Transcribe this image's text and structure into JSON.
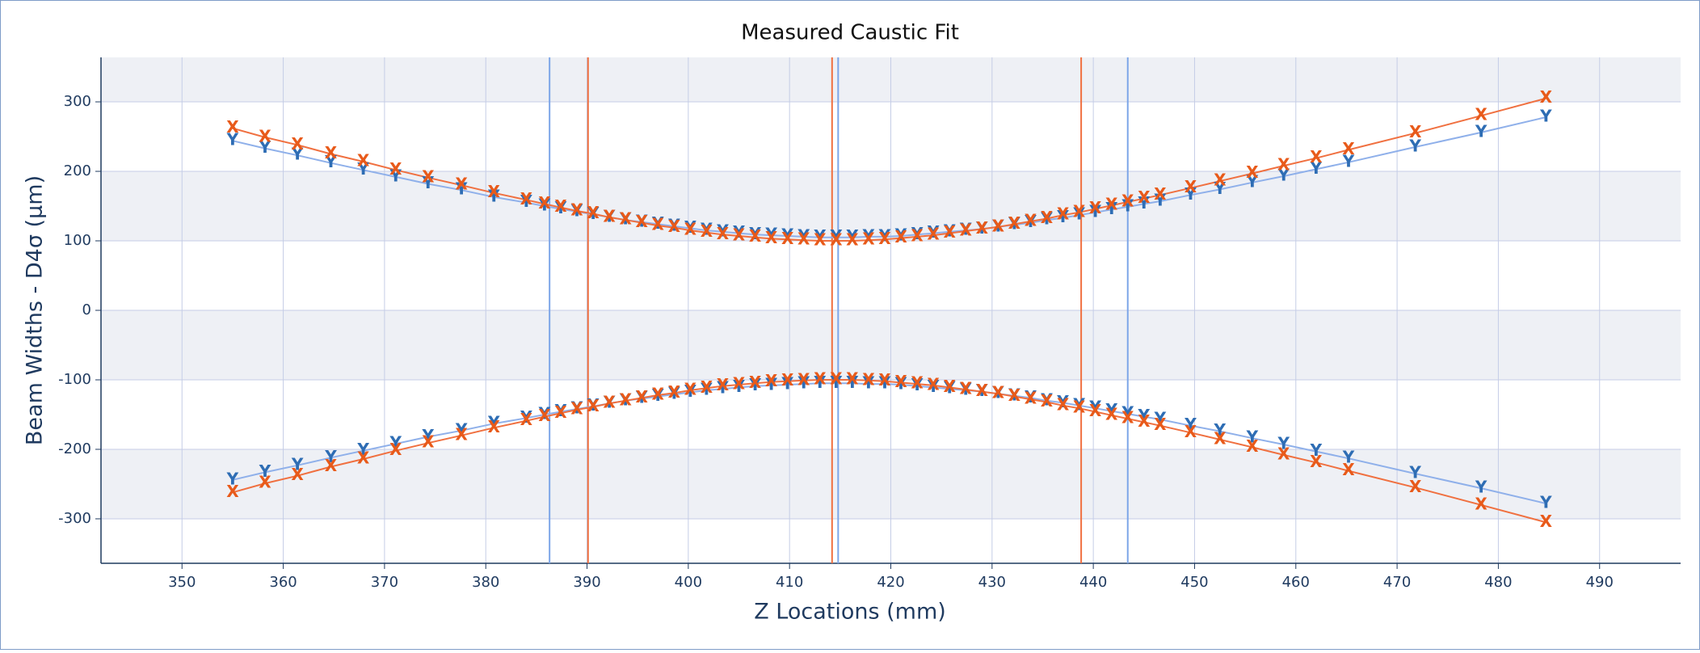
{
  "chart_data": {
    "type": "scatter",
    "title": "Measured Caustic Fit",
    "x_label": "Z Locations (mm)",
    "y_label": "Beam Widths - D4σ (µm)",
    "xlim": [
      342,
      498
    ],
    "ylim": [
      -364,
      364
    ],
    "xticks": [
      350,
      360,
      370,
      380,
      390,
      400,
      410,
      420,
      430,
      440,
      450,
      460,
      470,
      480,
      490
    ],
    "yticks": [
      -300,
      -200,
      -100,
      0,
      100,
      200,
      300
    ],
    "grid": true,
    "banded": true,
    "x": [
      355.0,
      358.2,
      361.4,
      364.7,
      367.9,
      371.1,
      374.3,
      377.6,
      380.8,
      384.0,
      385.8,
      387.4,
      389.0,
      390.6,
      392.2,
      393.8,
      395.4,
      397.0,
      398.6,
      400.2,
      401.8,
      403.4,
      405.0,
      406.6,
      408.2,
      409.8,
      411.4,
      413.0,
      414.6,
      416.2,
      417.8,
      419.4,
      421.0,
      422.6,
      424.2,
      425.8,
      427.4,
      429.0,
      430.6,
      432.2,
      433.8,
      435.4,
      437.0,
      438.6,
      440.2,
      441.8,
      443.4,
      445.0,
      446.6,
      449.6,
      452.5,
      455.7,
      458.8,
      462.0,
      465.2,
      471.8,
      478.3,
      484.7
    ],
    "series": [
      {
        "name": "Y",
        "color": "#8fb0ea",
        "marker_color": "#2e6db4",
        "values": [
          244,
          233,
          223,
          212,
          202,
          192,
          182,
          173,
          163,
          155,
          150,
          146,
          142,
          138,
          134,
          130,
          127,
          124,
          121,
          118,
          115,
          113,
          111,
          109,
          108,
          107,
          106,
          105,
          105,
          105,
          106,
          106,
          107,
          109,
          111,
          113,
          115,
          117,
          120,
          123,
          126,
          130,
          133,
          137,
          141,
          145,
          149,
          153,
          157,
          166,
          174,
          184,
          193,
          203,
          213,
          235,
          256,
          278
        ]
      },
      {
        "name": "Y",
        "color": "#8fb0ea",
        "marker_color": "#2e6db4",
        "values": [
          -244,
          -233,
          -223,
          -212,
          -202,
          -192,
          -182,
          -173,
          -163,
          -155,
          -150,
          -146,
          -142,
          -138,
          -134,
          -130,
          -127,
          -124,
          -121,
          -118,
          -115,
          -113,
          -111,
          -109,
          -108,
          -107,
          -106,
          -105,
          -105,
          -105,
          -106,
          -106,
          -107,
          -109,
          -111,
          -113,
          -115,
          -117,
          -120,
          -123,
          -126,
          -130,
          -133,
          -137,
          -141,
          -145,
          -149,
          -153,
          -157,
          -166,
          -174,
          -184,
          -193,
          -203,
          -213,
          -235,
          -256,
          -278
        ]
      },
      {
        "name": "X",
        "color": "#f07040",
        "marker_color": "#e85a1a",
        "values": [
          262,
          249,
          238,
          225,
          214,
          202,
          191,
          180,
          169,
          159,
          153,
          148,
          143,
          139,
          134,
          130,
          126,
          122,
          119,
          115,
          112,
          109,
          107,
          105,
          103,
          102,
          101,
          100,
          100,
          100,
          101,
          102,
          104,
          106,
          108,
          111,
          114,
          117,
          120,
          124,
          128,
          132,
          137,
          141,
          146,
          151,
          156,
          161,
          166,
          176,
          186,
          197,
          208,
          219,
          231,
          255,
          280,
          305
        ]
      },
      {
        "name": "X",
        "color": "#f07040",
        "marker_color": "#e85a1a",
        "values": [
          -262,
          -249,
          -238,
          -225,
          -214,
          -202,
          -191,
          -180,
          -169,
          -159,
          -153,
          -148,
          -143,
          -139,
          -134,
          -130,
          -126,
          -122,
          -119,
          -115,
          -112,
          -109,
          -107,
          -105,
          -103,
          -102,
          -101,
          -100,
          -100,
          -100,
          -101,
          -102,
          -104,
          -106,
          -108,
          -111,
          -114,
          -117,
          -120,
          -124,
          -128,
          -132,
          -137,
          -141,
          -146,
          -151,
          -156,
          -161,
          -166,
          -176,
          -186,
          -197,
          -208,
          -219,
          -231,
          -255,
          -280,
          -305
        ]
      }
    ],
    "vlines": [
      {
        "x": 386.3,
        "color": "#7da6e8"
      },
      {
        "x": 390.1,
        "color": "#f07040"
      },
      {
        "x": 414.2,
        "color": "#f07040"
      },
      {
        "x": 414.8,
        "color": "#7da6e8"
      },
      {
        "x": 438.8,
        "color": "#f07040"
      },
      {
        "x": 443.4,
        "color": "#7da6e8"
      }
    ]
  }
}
